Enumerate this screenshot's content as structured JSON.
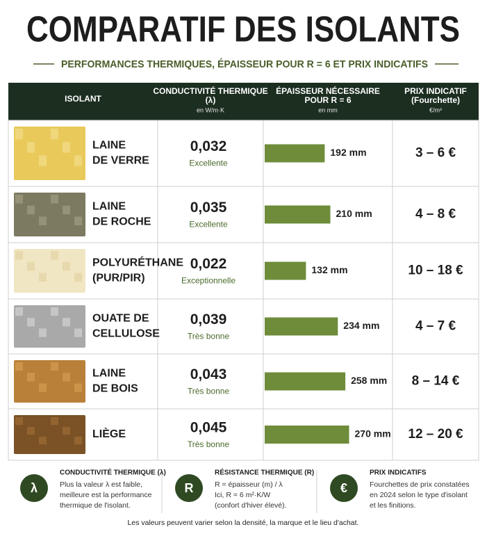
{
  "header": {
    "title": "COMPARATIF DES ISOLANTS",
    "subtitle": "PERFORMANCES THERMIQUES, ÉPAISSEUR POUR R = 6 ET PRIX INDICATIFS"
  },
  "table": {
    "columns": [
      {
        "lines": [
          "ISOLANT"
        ]
      },
      {
        "lines": [
          "CONDUCTIVITÉ THERMIQUE",
          "(λ)"
        ],
        "unit": "en W/m·K"
      },
      {
        "lines": [
          "ÉPAISSEUR NÉCESSAIRE",
          "POUR R = 6"
        ],
        "unit": "en mm"
      },
      {
        "lines": [
          "PRIX INDICATIF",
          "(Fourchette)"
        ],
        "unit": "€/m²"
      }
    ],
    "rows": [
      {
        "name": [
          "LAINE",
          "DE VERRE"
        ],
        "conductivity": "0,032",
        "rating": "Excellente",
        "thickness": 192,
        "thickness_label": "192 mm",
        "price": "3 – 6 €"
      },
      {
        "name": [
          "LAINE",
          "DE ROCHE"
        ],
        "conductivity": "0,035",
        "rating": "Excellente",
        "thickness": 210,
        "thickness_label": "210 mm",
        "price": "4 – 8 €"
      },
      {
        "name": [
          "POLYURÉTHANE",
          "(PUR/PIR)"
        ],
        "conductivity": "0,022",
        "rating": "Exceptionnelle",
        "thickness": 132,
        "thickness_label": "132 mm",
        "price": "10 – 18 €"
      },
      {
        "name": [
          "OUATE DE",
          "CELLULOSE"
        ],
        "conductivity": "0,039",
        "rating": "Très bonne",
        "thickness": 234,
        "thickness_label": "234 mm",
        "price": "4 – 7 €"
      },
      {
        "name": [
          "LAINE",
          "DE BOIS"
        ],
        "conductivity": "0,043",
        "rating": "Très bonne",
        "thickness": 258,
        "thickness_label": "258 mm",
        "price": "8 – 14 €"
      },
      {
        "name": [
          "LIÈGE"
        ],
        "conductivity": "0,045",
        "rating": "Très bonne",
        "thickness": 270,
        "thickness_label": "270 mm",
        "price": "12 – 20 €"
      }
    ]
  },
  "legend": [
    {
      "icon": "λ",
      "title": "CONDUCTIVITÉ THERMIQUE (λ)",
      "lines": [
        "Plus la valeur λ est faible,",
        "meilleure est la performance",
        "thermique de l'isolant."
      ]
    },
    {
      "icon": "R",
      "title": "RÉSISTANCE THERMIQUE (R)",
      "lines": [
        "R = épaisseur (m) / λ",
        "Ici, R = 6 m²·K/W",
        "(confort d'hiver élevé)."
      ]
    },
    {
      "icon": "€",
      "title": "PRIX INDICATIFS",
      "lines": [
        "Fourchettes de prix constatées",
        "en 2024 selon le type d'isolant",
        "et les finitions."
      ]
    }
  ],
  "footnote": "Les valeurs peuvent varier selon la densité, la marque et le lieu d'achat."
}
